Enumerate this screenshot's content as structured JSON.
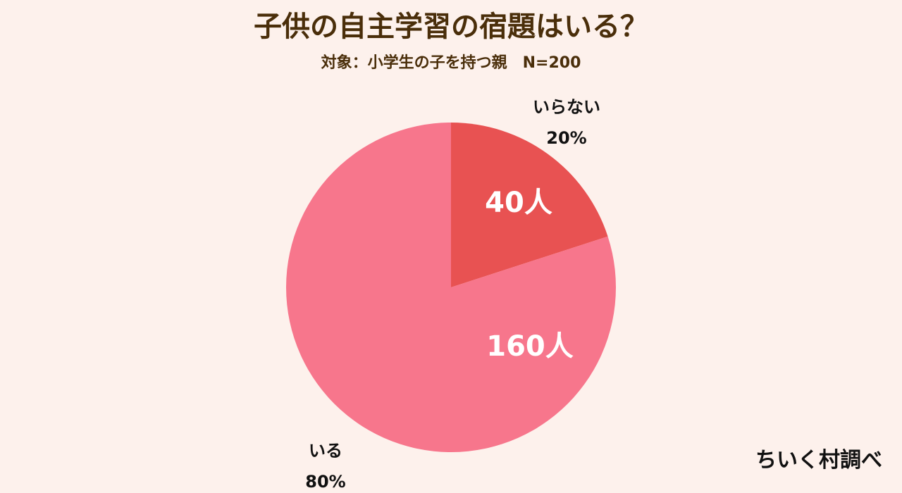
{
  "title": "子供の自主学習の宿題はいる？",
  "subtitle": "対象：小学生の子を持つ親　N=200",
  "credit": "ちいく村調べ",
  "chart_data": {
    "type": "pie",
    "title": "子供の自主学習の宿題はいる？",
    "subtitle": "対象：小学生の子を持つ親　N=200",
    "total": 200,
    "slices": [
      {
        "label": "いらない",
        "value": 40,
        "percent": 20,
        "count_label": "40人",
        "percent_label": "20%",
        "color": "#e85252"
      },
      {
        "label": "いる",
        "value": 160,
        "percent": 80,
        "count_label": "160人",
        "percent_label": "80%",
        "color": "#f7768c"
      }
    ]
  }
}
